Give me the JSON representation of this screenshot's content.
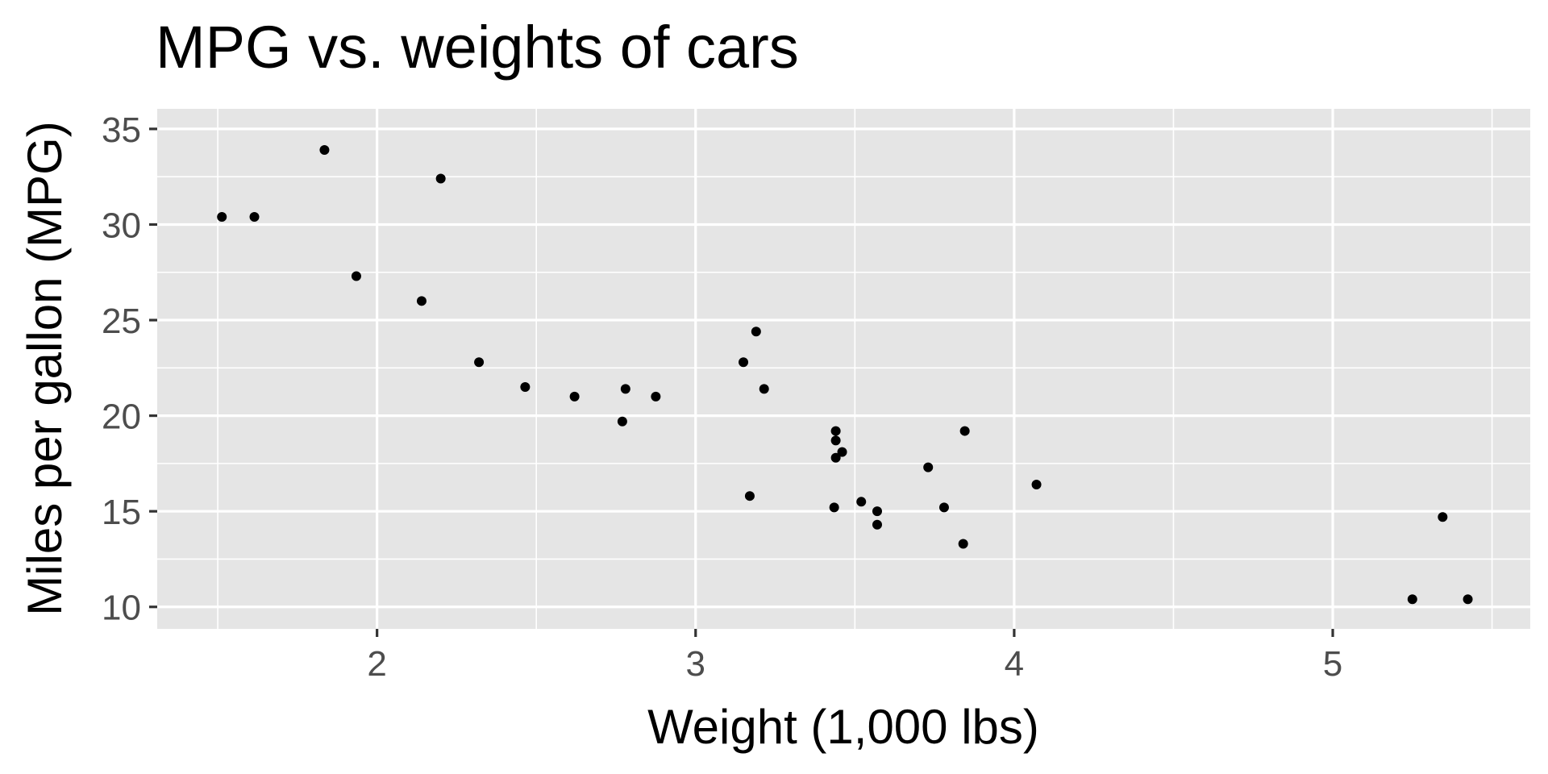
{
  "chart_data": {
    "type": "scatter",
    "title": "MPG vs. weights of cars",
    "xlabel": "Weight (1,000 lbs)",
    "ylabel": "Miles per gallon (MPG)",
    "xlim": [
      1.31,
      5.62
    ],
    "ylim": [
      8.85,
      36.05
    ],
    "x_ticks": [
      2,
      3,
      4,
      5
    ],
    "x_minor": [
      1.5,
      2.5,
      3.5,
      4.5,
      5.5
    ],
    "y_ticks": [
      10,
      15,
      20,
      25,
      30,
      35
    ],
    "y_minor": [
      12.5,
      17.5,
      22.5,
      27.5,
      32.5
    ],
    "grid": true,
    "panel_background": "#e5e5e5",
    "point_color": "#000000",
    "points": [
      {
        "x": 1.513,
        "y": 30.4
      },
      {
        "x": 1.615,
        "y": 30.4
      },
      {
        "x": 1.835,
        "y": 33.9
      },
      {
        "x": 1.935,
        "y": 27.3
      },
      {
        "x": 2.14,
        "y": 26.0
      },
      {
        "x": 2.2,
        "y": 32.4
      },
      {
        "x": 2.32,
        "y": 22.8
      },
      {
        "x": 2.465,
        "y": 21.5
      },
      {
        "x": 2.62,
        "y": 21.0
      },
      {
        "x": 2.77,
        "y": 19.7
      },
      {
        "x": 2.78,
        "y": 21.4
      },
      {
        "x": 2.875,
        "y": 21.0
      },
      {
        "x": 3.15,
        "y": 22.8
      },
      {
        "x": 3.17,
        "y": 15.8
      },
      {
        "x": 3.19,
        "y": 24.4
      },
      {
        "x": 3.215,
        "y": 21.4
      },
      {
        "x": 3.435,
        "y": 15.2
      },
      {
        "x": 3.44,
        "y": 18.7
      },
      {
        "x": 3.44,
        "y": 19.2
      },
      {
        "x": 3.44,
        "y": 17.8
      },
      {
        "x": 3.46,
        "y": 18.1
      },
      {
        "x": 3.52,
        "y": 15.5
      },
      {
        "x": 3.57,
        "y": 15.0
      },
      {
        "x": 3.57,
        "y": 14.3
      },
      {
        "x": 3.73,
        "y": 17.3
      },
      {
        "x": 3.78,
        "y": 15.2
      },
      {
        "x": 3.84,
        "y": 13.3
      },
      {
        "x": 3.845,
        "y": 19.2
      },
      {
        "x": 4.07,
        "y": 16.4
      },
      {
        "x": 5.25,
        "y": 10.4
      },
      {
        "x": 5.345,
        "y": 14.7
      },
      {
        "x": 5.424,
        "y": 10.4
      }
    ]
  }
}
